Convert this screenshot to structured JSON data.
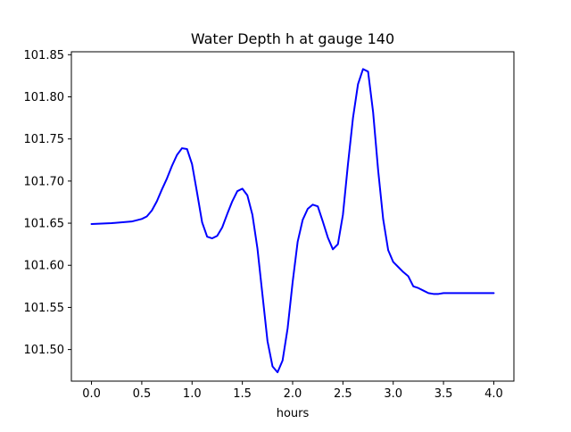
{
  "chart_data": {
    "type": "line",
    "title": "Water Depth h at gauge 140",
    "xlabel": "hours",
    "ylabel": "",
    "xlim": [
      -0.2,
      4.2
    ],
    "ylim": [
      101.4625,
      101.8535
    ],
    "xticks": [
      0.0,
      0.5,
      1.0,
      1.5,
      2.0,
      2.5,
      3.0,
      3.5,
      4.0
    ],
    "xtick_labels": [
      "0.0",
      "0.5",
      "1.0",
      "1.5",
      "2.0",
      "2.5",
      "3.0",
      "3.5",
      "4.0"
    ],
    "yticks": [
      101.5,
      101.55,
      101.6,
      101.65,
      101.7,
      101.75,
      101.8,
      101.85
    ],
    "ytick_labels": [
      "101.50",
      "101.55",
      "101.60",
      "101.65",
      "101.70",
      "101.75",
      "101.80",
      "101.85"
    ],
    "grid": false,
    "series": [
      {
        "color": "#0000ff",
        "x": [
          0.0,
          0.2,
          0.4,
          0.5,
          0.55,
          0.6,
          0.65,
          0.7,
          0.75,
          0.8,
          0.85,
          0.9,
          0.95,
          1.0,
          1.05,
          1.1,
          1.15,
          1.2,
          1.25,
          1.3,
          1.35,
          1.4,
          1.45,
          1.5,
          1.55,
          1.6,
          1.65,
          1.7,
          1.75,
          1.8,
          1.85,
          1.9,
          1.95,
          2.0,
          2.05,
          2.1,
          2.15,
          2.2,
          2.25,
          2.3,
          2.35,
          2.4,
          2.45,
          2.5,
          2.55,
          2.6,
          2.65,
          2.7,
          2.75,
          2.8,
          2.85,
          2.9,
          2.95,
          3.0,
          3.05,
          3.1,
          3.15,
          3.2,
          3.25,
          3.3,
          3.35,
          3.4,
          3.45,
          3.5,
          3.55,
          3.6,
          3.65,
          3.7,
          3.75,
          3.8,
          3.85,
          3.9,
          3.95,
          4.0
        ],
        "y": [
          101.649,
          101.65,
          101.652,
          101.655,
          101.658,
          101.665,
          101.676,
          101.69,
          101.703,
          101.718,
          101.731,
          101.739,
          101.738,
          101.72,
          101.686,
          101.651,
          101.634,
          101.632,
          101.635,
          101.645,
          101.661,
          101.676,
          101.688,
          101.691,
          101.683,
          101.66,
          101.62,
          101.565,
          101.51,
          101.48,
          101.473,
          101.487,
          101.525,
          101.58,
          101.628,
          101.654,
          101.667,
          101.672,
          101.67,
          101.652,
          101.633,
          101.619,
          101.625,
          101.66,
          101.72,
          101.775,
          101.815,
          101.833,
          101.83,
          101.782,
          101.713,
          101.655,
          101.618,
          101.604,
          101.598,
          101.592,
          101.587,
          101.575,
          101.573,
          101.57,
          101.567,
          101.566,
          101.566,
          101.567,
          101.567,
          101.567,
          101.567,
          101.567,
          101.567,
          101.567,
          101.567,
          101.567,
          101.567,
          101.567
        ]
      }
    ]
  }
}
